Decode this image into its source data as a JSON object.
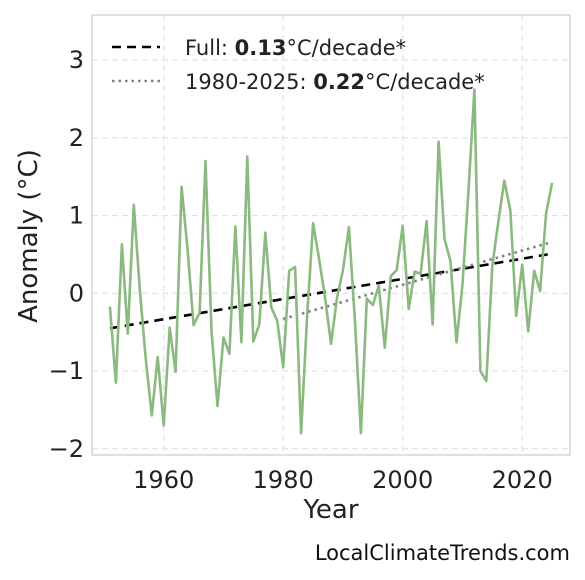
{
  "chart_data": {
    "type": "line",
    "xlabel": "Year",
    "ylabel": "Anomaly (°C)",
    "xlim": [
      1948,
      2028
    ],
    "ylim": [
      -2.08,
      3.58
    ],
    "x_ticks": [
      1960,
      1980,
      2000,
      2020
    ],
    "x_tick_labels": [
      "1960",
      "1980",
      "2000",
      "2020"
    ],
    "y_ticks": [
      -2,
      -1,
      0,
      1,
      2,
      3
    ],
    "y_tick_labels": [
      "−2",
      "−1",
      "0",
      "1",
      "2",
      "3"
    ],
    "grid": true,
    "legend_position": "top-left",
    "colors": {
      "series": "#8aba80",
      "full_trend": "#000000",
      "recent_trend": "#808080"
    },
    "series": [
      {
        "values_x": [
          1951,
          1952,
          1953,
          1954,
          1955,
          1956,
          1957,
          1958,
          1959,
          1960,
          1961,
          1962,
          1963,
          1964,
          1965,
          1966,
          1967,
          1968,
          1969,
          1970,
          1971,
          1972,
          1973,
          1974,
          1975,
          1976,
          1977,
          1978,
          1979,
          1980,
          1981,
          1982,
          1983,
          1984,
          1985,
          1986,
          1987,
          1988,
          1989,
          1990,
          1991,
          1992,
          1993,
          1994,
          1995,
          1996,
          1997,
          1998,
          1999,
          2000,
          2001,
          2002,
          2003,
          2004,
          2005,
          2006,
          2007,
          2008,
          2009,
          2010,
          2011,
          2012,
          2013,
          2014,
          2015,
          2016,
          2017,
          2018,
          2019,
          2020,
          2021,
          2022,
          2023,
          2024,
          2025
        ],
        "values_y": [
          -0.17,
          -1.15,
          0.63,
          -0.52,
          1.14,
          0.05,
          -0.85,
          -1.57,
          -0.82,
          -1.7,
          -0.44,
          -1.01,
          1.37,
          0.56,
          -0.41,
          -0.25,
          1.7,
          -0.48,
          -1.45,
          -0.57,
          -0.78,
          0.86,
          -0.63,
          1.76,
          -0.62,
          -0.4,
          0.78,
          -0.18,
          -0.35,
          -0.95,
          0.29,
          0.34,
          -1.8,
          -0.3,
          0.9,
          0.45,
          -0.05,
          -0.65,
          -0.06,
          0.3,
          0.85,
          -0.35,
          -1.8,
          -0.07,
          -0.15,
          0.1,
          -0.7,
          0.22,
          0.3,
          0.87,
          -0.2,
          0.28,
          0.25,
          0.93,
          -0.4,
          1.95,
          0.7,
          0.41,
          -0.63,
          0.1,
          1.3,
          2.62,
          -1.0,
          -1.13,
          0.35,
          0.92,
          1.45,
          1.07,
          -0.29,
          0.37,
          -0.49,
          0.29,
          0.03,
          1.03,
          1.42
        ]
      }
    ],
    "trend_lines": [
      {
        "label_prefix": "Full: ",
        "label_value": "0.13",
        "label_suffix": "°C/decade*",
        "x": [
          1951,
          2025
        ],
        "y": [
          -0.45,
          0.51
        ],
        "style": "dashed"
      },
      {
        "label_prefix": "1980-2025: ",
        "label_value": "0.22",
        "label_suffix": "°C/decade*",
        "x": [
          1980,
          2025
        ],
        "y": [
          -0.33,
          0.66
        ],
        "style": "dotted"
      }
    ]
  },
  "watermark": "LocalClimateTrends.com"
}
